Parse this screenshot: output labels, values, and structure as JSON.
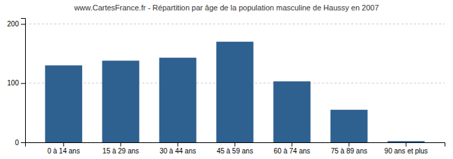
{
  "chart_data": {
    "type": "bar",
    "title": "www.CartesFrance.fr - Répartition par âge de la population masculine de Haussy en 2007",
    "categories": [
      "0 à 14 ans",
      "15 à 29 ans",
      "30 à 44 ans",
      "45 à 59 ans",
      "60 à 74 ans",
      "75 à 89 ans",
      "90 ans et plus"
    ],
    "values": [
      130,
      138,
      143,
      170,
      103,
      55,
      2
    ],
    "color": "#2e6090",
    "ylim": [
      0,
      210
    ],
    "yticks": [
      0,
      100,
      200
    ],
    "grid": true
  }
}
